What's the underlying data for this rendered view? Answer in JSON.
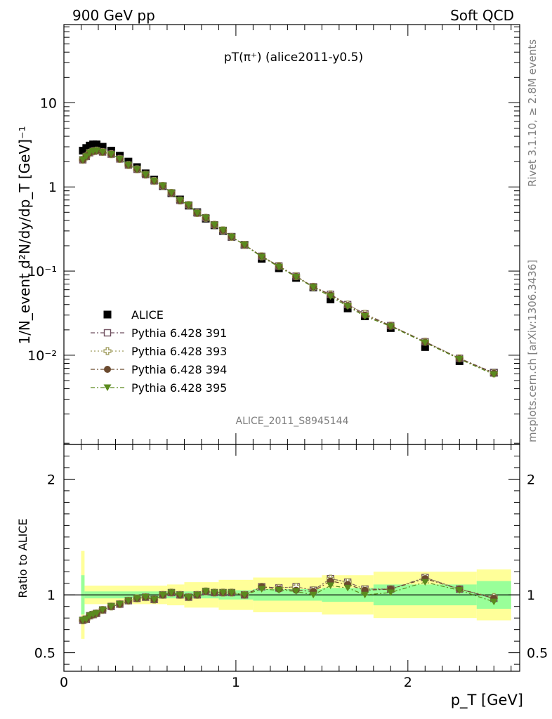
{
  "header": {
    "left": "900 GeV pp",
    "right": "Soft QCD"
  },
  "side": {
    "top": "Rivet 3.1.10, ≥ 2.8M events",
    "bottom": "mcplots.cern.ch [arXiv:1306.3436]"
  },
  "chart_data": [
    {
      "type": "scatter",
      "title": "pT(π⁺) (alice2011-y0.5)",
      "ylabel": "1/N_event d²N/dy/dp_T [GeV]⁻¹",
      "xlabel": "",
      "xlim": [
        0,
        2.65
      ],
      "ylim": [
        0.00087,
        85
      ],
      "yscale": "log",
      "grid": false,
      "legend_position": "center-left",
      "watermark": "ALICE_2011_S8945144",
      "y_ticks": [
        {
          "value": 10,
          "label": "10"
        },
        {
          "value": 1,
          "label": "1"
        },
        {
          "value": 0.1,
          "label": "10⁻¹"
        },
        {
          "value": 0.01,
          "label": "10⁻²"
        }
      ],
      "x": [
        0.11,
        0.13,
        0.15,
        0.17,
        0.19,
        0.225,
        0.275,
        0.325,
        0.375,
        0.425,
        0.475,
        0.525,
        0.575,
        0.625,
        0.675,
        0.725,
        0.775,
        0.825,
        0.875,
        0.925,
        0.975,
        1.05,
        1.15,
        1.25,
        1.35,
        1.45,
        1.55,
        1.65,
        1.75,
        1.9,
        2.1,
        2.3,
        2.5
      ],
      "series": [
        {
          "name": "ALICE",
          "marker": "square-filled",
          "color": "#000000",
          "values": [
            2.7,
            2.9,
            3.1,
            3.2,
            3.2,
            3.0,
            2.7,
            2.35,
            2.0,
            1.72,
            1.45,
            1.22,
            1.02,
            0.84,
            0.71,
            0.6,
            0.5,
            0.42,
            0.35,
            0.3,
            0.255,
            0.205,
            0.14,
            0.108,
            0.083,
            0.064,
            0.046,
            0.036,
            0.029,
            0.021,
            0.0125,
            0.0085,
            0.0062
          ]
        },
        {
          "name": "Pythia 6.428 391",
          "marker": "square-open",
          "color": "#6e4e5e",
          "values": [
            2.1,
            2.3,
            2.55,
            2.65,
            2.7,
            2.6,
            2.45,
            2.15,
            1.82,
            1.62,
            1.4,
            1.18,
            1.03,
            0.85,
            0.69,
            0.61,
            0.49,
            0.43,
            0.355,
            0.305,
            0.255,
            0.205,
            0.15,
            0.115,
            0.087,
            0.065,
            0.053,
            0.04,
            0.031,
            0.0225,
            0.0145,
            0.0092,
            0.0062
          ]
        },
        {
          "name": "Pythia 6.428 393",
          "marker": "cross-open",
          "color": "#9e9a5a",
          "values": [
            2.1,
            2.3,
            2.55,
            2.65,
            2.7,
            2.6,
            2.45,
            2.15,
            1.82,
            1.62,
            1.4,
            1.18,
            1.03,
            0.85,
            0.69,
            0.61,
            0.49,
            0.43,
            0.355,
            0.305,
            0.255,
            0.205,
            0.15,
            0.115,
            0.087,
            0.065,
            0.053,
            0.04,
            0.031,
            0.0225,
            0.0145,
            0.0092,
            0.0061
          ]
        },
        {
          "name": "Pythia 6.428 394",
          "marker": "circle-filled",
          "color": "#6b4a2e",
          "values": [
            2.1,
            2.3,
            2.55,
            2.65,
            2.7,
            2.6,
            2.45,
            2.15,
            1.82,
            1.62,
            1.4,
            1.18,
            1.03,
            0.85,
            0.69,
            0.61,
            0.49,
            0.43,
            0.355,
            0.305,
            0.255,
            0.205,
            0.15,
            0.114,
            0.086,
            0.065,
            0.052,
            0.039,
            0.03,
            0.0223,
            0.0143,
            0.0091,
            0.0061
          ]
        },
        {
          "name": "Pythia 6.428 395",
          "marker": "triangle-down-filled",
          "color": "#5a8a1e",
          "values": [
            2.1,
            2.3,
            2.55,
            2.65,
            2.7,
            2.6,
            2.45,
            2.15,
            1.82,
            1.62,
            1.4,
            1.18,
            1.03,
            0.85,
            0.69,
            0.61,
            0.49,
            0.43,
            0.355,
            0.305,
            0.255,
            0.205,
            0.147,
            0.112,
            0.085,
            0.064,
            0.05,
            0.038,
            0.029,
            0.022,
            0.0141,
            0.009,
            0.0059
          ]
        }
      ]
    },
    {
      "type": "line",
      "title": "",
      "ylabel": "Ratio to ALICE",
      "xlabel": "p_T [GeV]",
      "xlim": [
        0,
        2.65
      ],
      "ylim": [
        0.34,
        2.3
      ],
      "grid": false,
      "x_ticks": [
        {
          "value": 0,
          "label": "0"
        },
        {
          "value": 1,
          "label": "1"
        },
        {
          "value": 2,
          "label": "2"
        }
      ],
      "y_ticks": [
        {
          "value": 2,
          "label": "2"
        },
        {
          "value": 1,
          "label": "1"
        },
        {
          "value": 0.5,
          "label": "0.5"
        }
      ],
      "uncertainty_bands": {
        "stat_color": "#99ff99",
        "total_color": "#ffff99",
        "bins": [
          {
            "x": [
              0.1,
              0.12
            ],
            "total": 0.38,
            "stat": 0.17
          },
          {
            "x": [
              0.12,
              0.6
            ],
            "total": 0.08,
            "stat": 0.03
          },
          {
            "x": [
              0.6,
              0.7
            ],
            "total": 0.09,
            "stat": 0.03
          },
          {
            "x": [
              0.7,
              0.9
            ],
            "total": 0.11,
            "stat": 0.03
          },
          {
            "x": [
              0.9,
              1.1
            ],
            "total": 0.13,
            "stat": 0.04
          },
          {
            "x": [
              1.1,
              1.5
            ],
            "total": 0.15,
            "stat": 0.05
          },
          {
            "x": [
              1.5,
              1.8
            ],
            "total": 0.17,
            "stat": 0.06
          },
          {
            "x": [
              1.8,
              2.4
            ],
            "total": 0.2,
            "stat": 0.09
          },
          {
            "x": [
              2.4,
              2.6
            ],
            "total": 0.22,
            "stat": 0.12
          }
        ]
      },
      "series": [
        {
          "name": "Pythia 6.428 391",
          "values": [
            0.78,
            0.79,
            0.82,
            0.83,
            0.84,
            0.87,
            0.9,
            0.92,
            0.95,
            0.97,
            0.98,
            0.96,
            1.0,
            1.02,
            1.0,
            0.98,
            1.0,
            1.03,
            1.02,
            1.02,
            1.02,
            1.0,
            1.07,
            1.06,
            1.07,
            1.04,
            1.14,
            1.11,
            1.05,
            1.05,
            1.15,
            1.05,
            0.97
          ]
        },
        {
          "name": "Pythia 6.428 393",
          "values": [
            0.78,
            0.79,
            0.82,
            0.83,
            0.84,
            0.87,
            0.9,
            0.92,
            0.95,
            0.97,
            0.98,
            0.96,
            1.0,
            1.02,
            1.0,
            0.98,
            1.0,
            1.03,
            1.02,
            1.02,
            1.02,
            1.0,
            1.07,
            1.06,
            1.07,
            1.04,
            1.14,
            1.11,
            1.05,
            1.05,
            1.15,
            1.05,
            0.98
          ]
        },
        {
          "name": "Pythia 6.428 394",
          "values": [
            0.78,
            0.79,
            0.82,
            0.83,
            0.84,
            0.87,
            0.9,
            0.92,
            0.95,
            0.97,
            0.98,
            0.96,
            1.0,
            1.02,
            1.0,
            0.98,
            1.0,
            1.03,
            1.02,
            1.02,
            1.02,
            1.0,
            1.07,
            1.05,
            1.04,
            1.03,
            1.12,
            1.09,
            1.04,
            1.05,
            1.14,
            1.05,
            0.97
          ]
        },
        {
          "name": "Pythia 6.428 395",
          "values": [
            0.78,
            0.79,
            0.82,
            0.83,
            0.84,
            0.87,
            0.9,
            0.92,
            0.95,
            0.97,
            0.98,
            0.96,
            1.0,
            1.02,
            1.0,
            0.98,
            1.0,
            1.03,
            1.02,
            1.02,
            1.02,
            1.0,
            1.05,
            1.04,
            1.03,
            1.0,
            1.08,
            1.06,
            1.0,
            1.02,
            1.11,
            1.04,
            0.94
          ]
        }
      ]
    }
  ]
}
